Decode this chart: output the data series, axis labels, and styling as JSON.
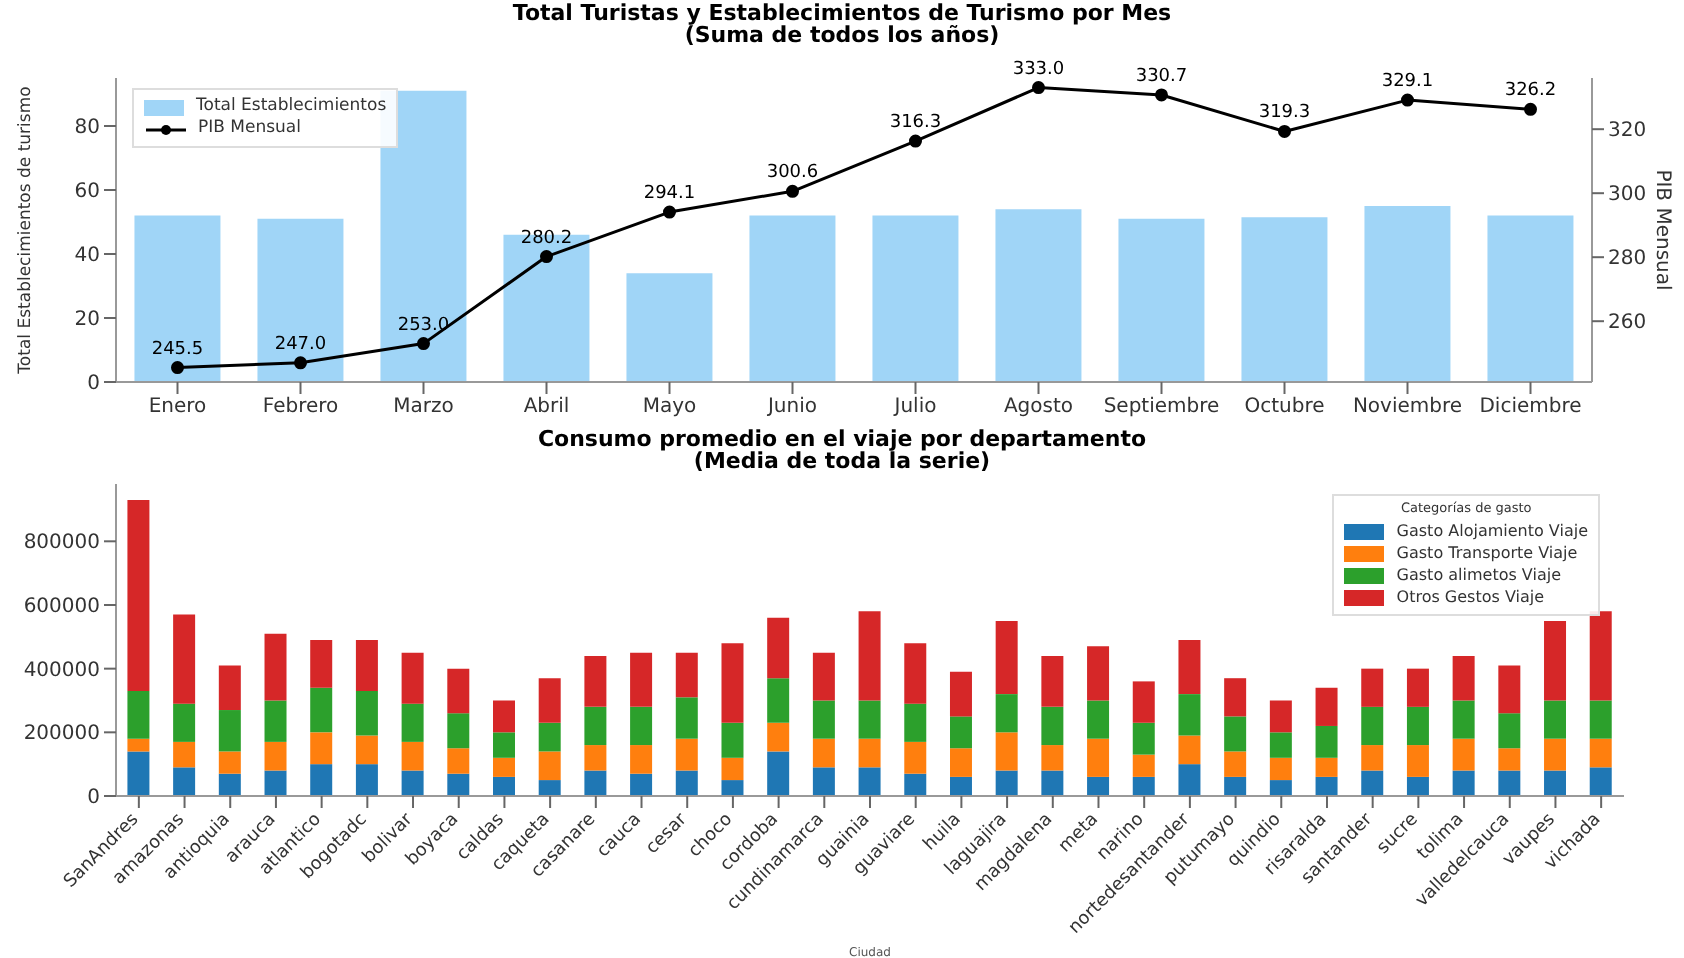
{
  "chart_data": [
    {
      "type": "bar",
      "title": "Total Turistas y Establecimientos de Turismo por Mes",
      "subtitle": "(Suma de todos los años)",
      "ylabel": "Total Establecimientos de turismo",
      "y2label": "PIB Mensual",
      "categories": [
        "Enero",
        "Febrero",
        "Marzo",
        "Abril",
        "Mayo",
        "Junio",
        "Julio",
        "Agosto",
        "Septiembre",
        "Octubre",
        "Noviembre",
        "Diciembre"
      ],
      "series": [
        {
          "name": "Total Establecimientos",
          "color": "#a0d5f7",
          "values": [
            52,
            51,
            91,
            46,
            34,
            52,
            52,
            54,
            51,
            51.5,
            55,
            52
          ]
        },
        {
          "name": "PIB Mensual",
          "type": "line",
          "axis": "y2",
          "color": "#000000",
          "values": [
            245.5,
            247.0,
            253.0,
            280.2,
            294.1,
            300.6,
            316.3,
            333.0,
            330.7,
            319.3,
            329.1,
            326.2
          ],
          "value_labels": [
            "245.5",
            "247.0",
            "253.0",
            "280.2",
            "294.1",
            "300.6",
            "316.3",
            "333.0",
            "330.7",
            "319.3",
            "329.1",
            "326.2"
          ]
        }
      ],
      "ylim": [
        0,
        95
      ],
      "yticks": [
        0,
        20,
        40,
        60,
        80
      ],
      "y2lim": [
        241,
        336
      ],
      "y2ticks": [
        260,
        280,
        300,
        320
      ],
      "legend": "top left",
      "marker": "circle"
    },
    {
      "type": "bar",
      "stacked": true,
      "title": "Consumo promedio en el viaje por departamento",
      "subtitle": "(Media de toda la serie)",
      "xlabel": "Ciudad",
      "legend_title": "Categorías de gasto",
      "categories": [
        "SanAndres",
        "amazonas",
        "antioquia",
        "arauca",
        "atlantico",
        "bogotadc",
        "bolivar",
        "boyaca",
        "caldas",
        "caqueta",
        "casanare",
        "cauca",
        "cesar",
        "choco",
        "cordoba",
        "cundinamarca",
        "guainia",
        "guaviare",
        "huila",
        "laguajira",
        "magdalena",
        "meta",
        "narino",
        "nortedesantander",
        "putumayo",
        "quindio",
        "risaralda",
        "santander",
        "sucre",
        "tolima",
        "valledelcauca",
        "vaupes",
        "vichada"
      ],
      "series": [
        {
          "name": "Gasto  Alojamiento Viaje",
          "color": "#1f77b4",
          "values": [
            140000,
            90000,
            70000,
            80000,
            100000,
            100000,
            80000,
            70000,
            60000,
            50000,
            80000,
            70000,
            80000,
            50000,
            140000,
            90000,
            90000,
            70000,
            60000,
            80000,
            80000,
            60000,
            60000,
            100000,
            60000,
            50000,
            60000,
            80000,
            60000,
            80000,
            80000,
            80000,
            90000
          ]
        },
        {
          "name": "Gasto Transporte Viaje",
          "color": "#ff7f0e",
          "values": [
            40000,
            80000,
            70000,
            90000,
            100000,
            90000,
            90000,
            80000,
            60000,
            90000,
            80000,
            90000,
            100000,
            70000,
            90000,
            90000,
            90000,
            100000,
            90000,
            120000,
            80000,
            120000,
            70000,
            90000,
            80000,
            70000,
            60000,
            80000,
            100000,
            100000,
            70000,
            100000,
            90000
          ]
        },
        {
          "name": "Gasto alimetos Viaje",
          "color": "#2ca02c",
          "values": [
            150000,
            120000,
            130000,
            130000,
            140000,
            140000,
            120000,
            110000,
            80000,
            90000,
            120000,
            120000,
            130000,
            110000,
            140000,
            120000,
            120000,
            120000,
            100000,
            120000,
            120000,
            120000,
            100000,
            130000,
            110000,
            80000,
            100000,
            120000,
            120000,
            120000,
            110000,
            120000,
            120000
          ]
        },
        {
          "name": "Otros Gestos Viaje",
          "color": "#d62728",
          "values": [
            600000,
            280000,
            140000,
            210000,
            150000,
            160000,
            160000,
            140000,
            100000,
            140000,
            160000,
            170000,
            140000,
            250000,
            190000,
            150000,
            280000,
            190000,
            140000,
            230000,
            160000,
            170000,
            130000,
            170000,
            120000,
            100000,
            120000,
            120000,
            120000,
            140000,
            150000,
            250000,
            280000
          ]
        }
      ],
      "ylim": [
        0,
        980000
      ],
      "yticks": [
        0,
        200000,
        400000,
        600000,
        800000
      ],
      "legend": "top right"
    }
  ]
}
